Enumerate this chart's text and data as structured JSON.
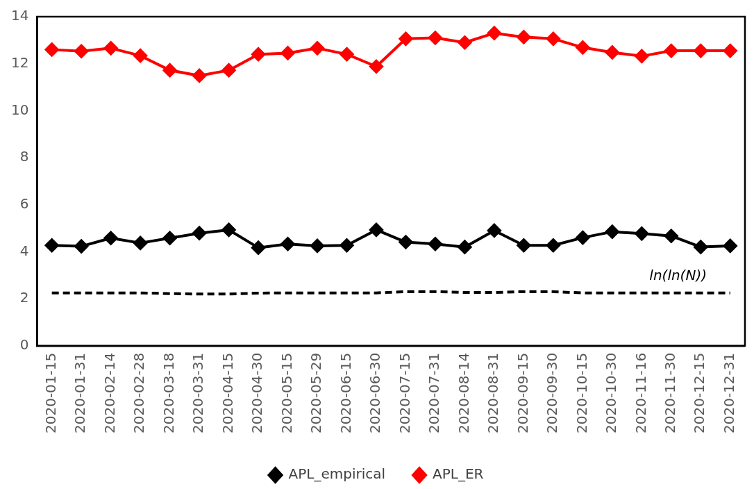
{
  "chart_data": {
    "type": "line",
    "categories": [
      "2020-01-15",
      "2020-01-31",
      "2020-02-14",
      "2020-02-28",
      "2020-03-18",
      "2020-03-31",
      "2020-04-15",
      "2020-04-30",
      "2020-05-15",
      "2020-05-29",
      "2020-06-15",
      "2020-06-30",
      "2020-07-15",
      "2020-07-31",
      "2020-08-14",
      "2020-08-31",
      "2020-09-15",
      "2020-09-30",
      "2020-10-15",
      "2020-10-30",
      "2020-11-16",
      "2020-11-30",
      "2020-12-15",
      "2020-12-31"
    ],
    "series": [
      {
        "name": "APL_empirical",
        "color": "#000000",
        "values": [
          4.27,
          4.23,
          4.58,
          4.37,
          4.58,
          4.79,
          4.93,
          4.17,
          4.33,
          4.25,
          4.27,
          4.93,
          4.41,
          4.33,
          4.2,
          4.9,
          4.27,
          4.27,
          4.6,
          4.85,
          4.77,
          4.67,
          4.2,
          4.25
        ]
      },
      {
        "name": "APL_ER",
        "color": "#ff0000",
        "values": [
          12.6,
          12.53,
          12.66,
          12.34,
          11.72,
          11.49,
          11.72,
          12.4,
          12.45,
          12.66,
          12.4,
          11.88,
          13.06,
          13.1,
          12.9,
          13.3,
          13.13,
          13.06,
          12.69,
          12.48,
          12.32,
          12.55,
          12.55,
          12.55
        ]
      },
      {
        "color": "#000000",
        "marker": "none",
        "line_style": "dashed",
        "values": [
          2.25,
          2.25,
          2.25,
          2.25,
          2.22,
          2.2,
          2.2,
          2.24,
          2.25,
          2.25,
          2.25,
          2.25,
          2.3,
          2.3,
          2.27,
          2.27,
          2.3,
          2.3,
          2.25,
          2.25,
          2.25,
          2.25,
          2.25,
          2.25
        ]
      }
    ],
    "annotations": [
      "ln(ln(N))"
    ],
    "ylim": [
      0,
      14
    ],
    "yticks": [
      0,
      2,
      4,
      6,
      8,
      10,
      12,
      14
    ],
    "grid": false,
    "legend": "bottom",
    "marker": "diamond",
    "line_style": "solid"
  }
}
